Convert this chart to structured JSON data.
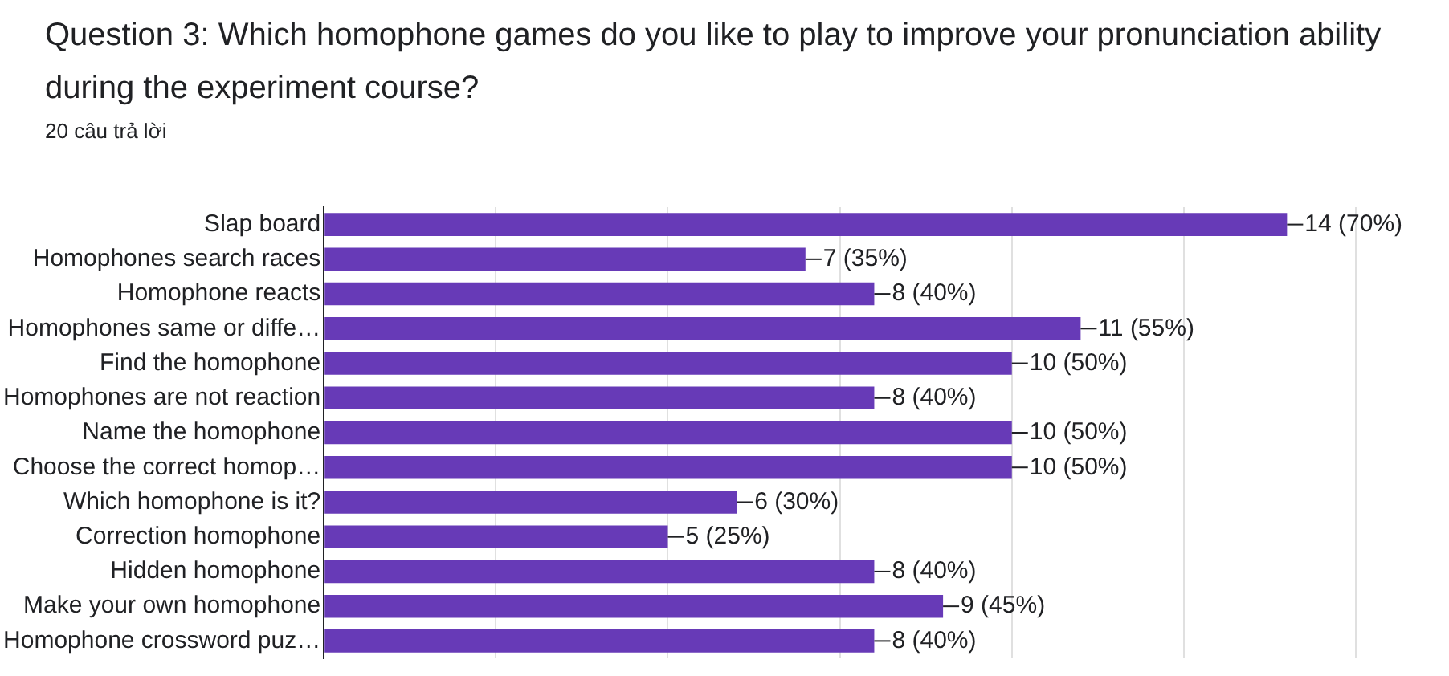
{
  "chart_data": {
    "type": "bar",
    "orientation": "horizontal",
    "title": "Question 3: Which homophone games do you like to play to improve your pronunciation ability during the experiment course?",
    "subtitle": "20 câu trả lời",
    "categories": [
      "Slap board",
      "Homophones search races",
      "Homophone reacts",
      "Homophones same or diffe…",
      "Find the homophone",
      "Homophones are not reaction",
      "Name the homophone",
      "Choose the correct homop…",
      "Which homophone is it?",
      "Correction homophone",
      "Hidden homophone",
      "Make your own homophone",
      "Homophone crossword puz…"
    ],
    "values": [
      14,
      7,
      8,
      11,
      10,
      8,
      10,
      10,
      6,
      5,
      8,
      9,
      8
    ],
    "value_labels": [
      "14 (70%)",
      "7 (35%)",
      "8 (40%)",
      "11 (55%)",
      "10 (50%)",
      "8 (40%)",
      "10 (50%)",
      "10 (50%)",
      "6 (30%)",
      "5 (25%)",
      "8 (40%)",
      "9 (45%)",
      "8 (40%)"
    ],
    "color": "#673ab7",
    "xlim": [
      0,
      15
    ],
    "xticks": [
      {
        "value": 0,
        "label": null
      },
      {
        "value": 2.5,
        "label": null
      },
      {
        "value": 5,
        "label": null
      },
      {
        "value": 7.5,
        "label": null
      },
      {
        "value": 10,
        "label": null
      },
      {
        "value": 12.5,
        "label": null
      },
      {
        "value": 15,
        "label": null
      }
    ],
    "grid": "x",
    "tick_labels": "y"
  }
}
